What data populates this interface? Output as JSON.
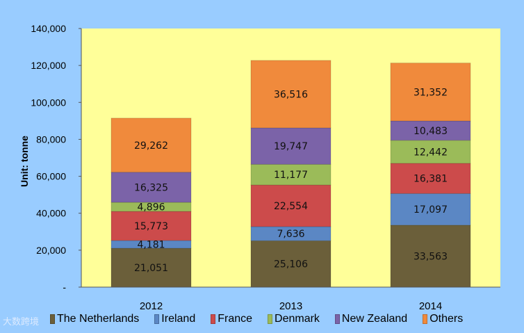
{
  "chart_data": {
    "type": "bar",
    "stacked": true,
    "categories": [
      "2012",
      "2013",
      "2014"
    ],
    "series": [
      {
        "name": "The Netherlands",
        "values": [
          21051,
          25106,
          33563
        ],
        "color": "#6b5f3a"
      },
      {
        "name": "Ireland",
        "values": [
          4181,
          7636,
          17097
        ],
        "color": "#5b87c4"
      },
      {
        "name": "France",
        "values": [
          15773,
          22554,
          16381
        ],
        "color": "#cc4b4b"
      },
      {
        "name": "Denmark",
        "values": [
          4896,
          11177,
          12442
        ],
        "color": "#9bbb59"
      },
      {
        "name": "New Zealand",
        "values": [
          16325,
          19747,
          10483
        ],
        "color": "#7b63a8"
      },
      {
        "name": "Others",
        "values": [
          29262,
          36516,
          31352
        ],
        "color": "#f08a3c"
      }
    ],
    "data_labels": [
      [
        "21,051",
        "25,106",
        "33,563"
      ],
      [
        "4,181",
        "7,636",
        "17,097"
      ],
      [
        "15,773",
        "22,554",
        "16,381"
      ],
      [
        "4,896",
        "11,177",
        "12,442"
      ],
      [
        "16,325",
        "19,747",
        "10,483"
      ],
      [
        "29,262",
        "36,516",
        "31,352"
      ]
    ],
    "ylabel": "Unit: tonne",
    "ylim": [
      0,
      140000
    ],
    "yticks": [
      0,
      20000,
      40000,
      60000,
      80000,
      100000,
      120000,
      140000
    ],
    "ytick_labels": [
      "-",
      "20,000",
      "40,000",
      "60,000",
      "80,000",
      "100,000",
      "120,000",
      "140,000"
    ],
    "legend_position": "bottom",
    "plot_background": "#ffff99",
    "page_background": "#99ccff"
  },
  "watermark_text": "大数跨境"
}
